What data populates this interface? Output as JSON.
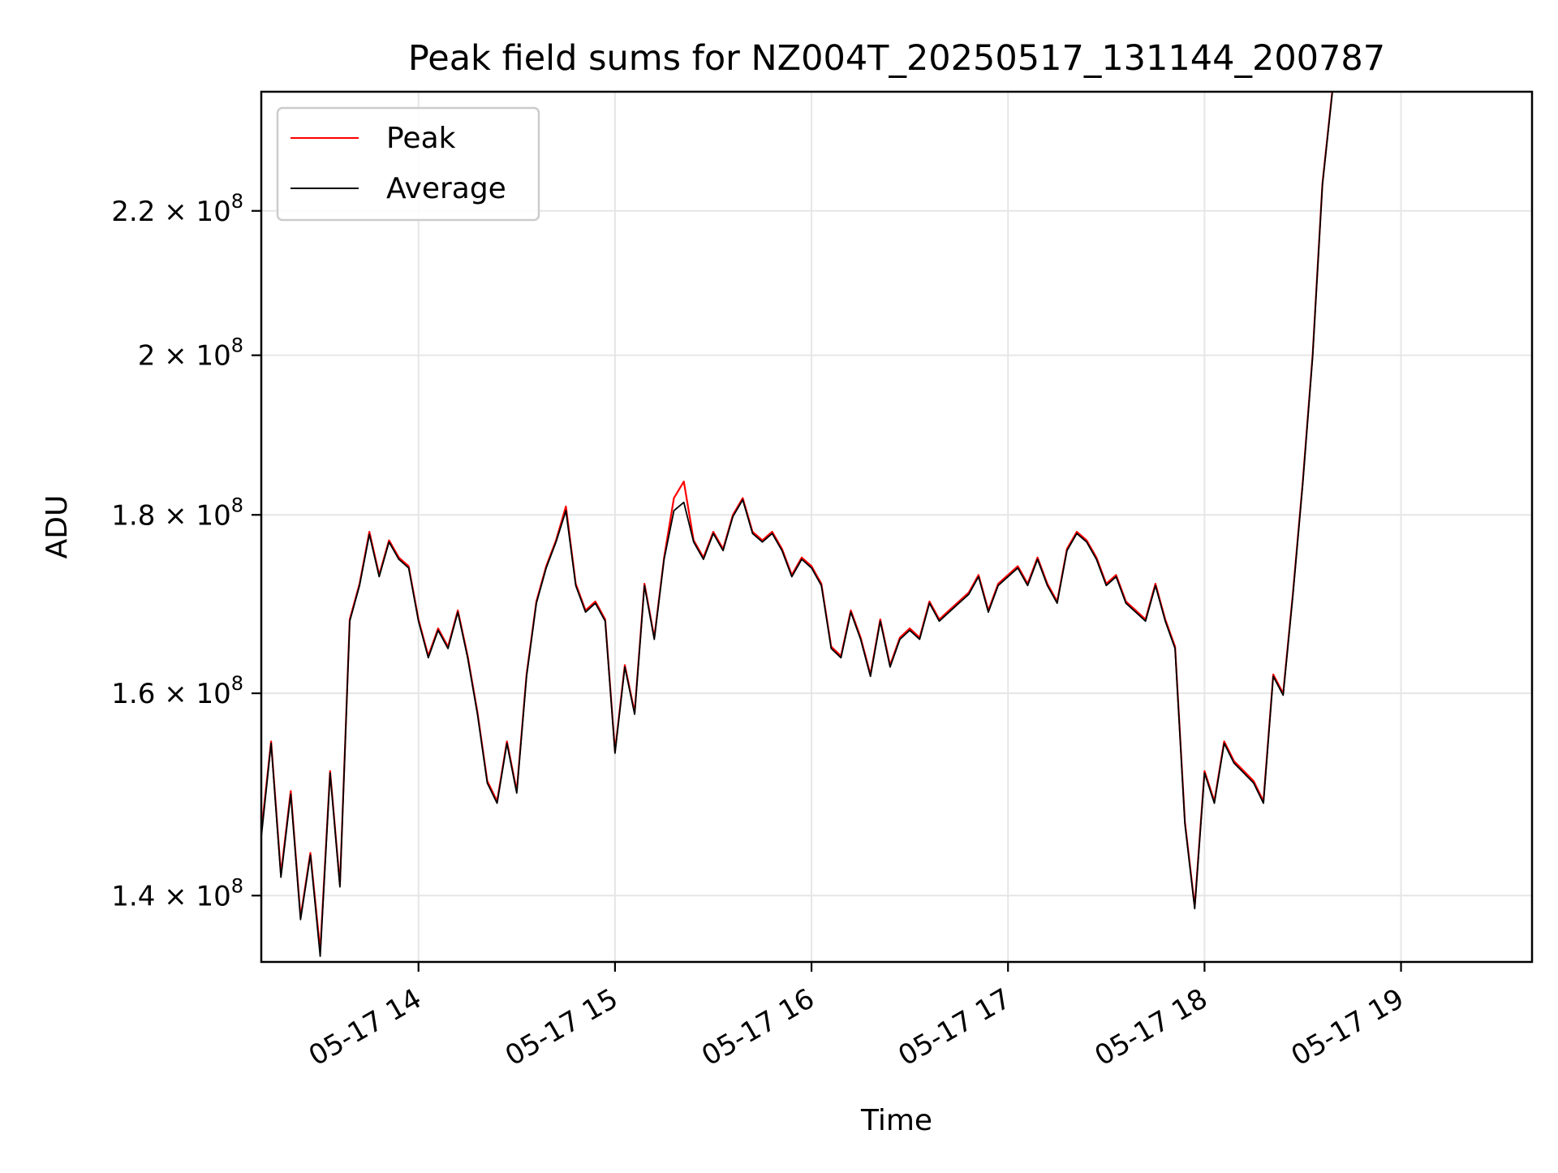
{
  "chart_data": {
    "type": "line",
    "title": "Peak field sums for NZ004T_20250517_131144_200787",
    "xlabel": "Time",
    "ylabel": "ADU",
    "y_scale": "log",
    "grid": true,
    "legend_position": "top-left",
    "xlim": [
      "2025-05-17 13:12",
      "2025-05-17 19:40"
    ],
    "ylim": [
      134000000,
      238000000
    ],
    "x_ticks": [
      {
        "value": "2025-05-17 14:00",
        "label": "05-17 14"
      },
      {
        "value": "2025-05-17 15:00",
        "label": "05-17 15"
      },
      {
        "value": "2025-05-17 16:00",
        "label": "05-17 16"
      },
      {
        "value": "2025-05-17 17:00",
        "label": "05-17 17"
      },
      {
        "value": "2025-05-17 18:00",
        "label": "05-17 18"
      },
      {
        "value": "2025-05-17 19:00",
        "label": "05-17 19"
      }
    ],
    "y_ticks": [
      {
        "value": 140000000,
        "mantissa": "1.4",
        "exponent": "8"
      },
      {
        "value": 160000000,
        "mantissa": "1.6",
        "exponent": "8"
      },
      {
        "value": 180000000,
        "mantissa": "1.8",
        "exponent": "8"
      },
      {
        "value": 200000000,
        "mantissa": "2",
        "exponent": "8"
      },
      {
        "value": 220000000,
        "mantissa": "2.2",
        "exponent": "8"
      }
    ],
    "times_x": "multiply",
    "x": [
      "2025-05-17 13:12",
      "2025-05-17 13:15",
      "2025-05-17 13:18",
      "2025-05-17 13:21",
      "2025-05-17 13:24",
      "2025-05-17 13:27",
      "2025-05-17 13:30",
      "2025-05-17 13:33",
      "2025-05-17 13:36",
      "2025-05-17 13:39",
      "2025-05-17 13:42",
      "2025-05-17 13:45",
      "2025-05-17 13:48",
      "2025-05-17 13:51",
      "2025-05-17 13:54",
      "2025-05-17 13:57",
      "2025-05-17 14:00",
      "2025-05-17 14:03",
      "2025-05-17 14:06",
      "2025-05-17 14:09",
      "2025-05-17 14:12",
      "2025-05-17 14:15",
      "2025-05-17 14:18",
      "2025-05-17 14:21",
      "2025-05-17 14:24",
      "2025-05-17 14:27",
      "2025-05-17 14:30",
      "2025-05-17 14:33",
      "2025-05-17 14:36",
      "2025-05-17 14:39",
      "2025-05-17 14:42",
      "2025-05-17 14:45",
      "2025-05-17 14:48",
      "2025-05-17 14:51",
      "2025-05-17 14:54",
      "2025-05-17 14:57",
      "2025-05-17 15:00",
      "2025-05-17 15:03",
      "2025-05-17 15:06",
      "2025-05-17 15:09",
      "2025-05-17 15:12",
      "2025-05-17 15:15",
      "2025-05-17 15:18",
      "2025-05-17 15:21",
      "2025-05-17 15:24",
      "2025-05-17 15:27",
      "2025-05-17 15:30",
      "2025-05-17 15:33",
      "2025-05-17 15:36",
      "2025-05-17 15:39",
      "2025-05-17 15:42",
      "2025-05-17 15:45",
      "2025-05-17 15:48",
      "2025-05-17 15:51",
      "2025-05-17 15:54",
      "2025-05-17 15:57",
      "2025-05-17 16:00",
      "2025-05-17 16:03",
      "2025-05-17 16:06",
      "2025-05-17 16:09",
      "2025-05-17 16:12",
      "2025-05-17 16:15",
      "2025-05-17 16:18",
      "2025-05-17 16:21",
      "2025-05-17 16:24",
      "2025-05-17 16:27",
      "2025-05-17 16:30",
      "2025-05-17 16:33",
      "2025-05-17 16:36",
      "2025-05-17 16:39",
      "2025-05-17 16:42",
      "2025-05-17 16:45",
      "2025-05-17 16:48",
      "2025-05-17 16:51",
      "2025-05-17 16:54",
      "2025-05-17 16:57",
      "2025-05-17 17:00",
      "2025-05-17 17:03",
      "2025-05-17 17:06",
      "2025-05-17 17:09",
      "2025-05-17 17:12",
      "2025-05-17 17:15",
      "2025-05-17 17:18",
      "2025-05-17 17:21",
      "2025-05-17 17:24",
      "2025-05-17 17:27",
      "2025-05-17 17:30",
      "2025-05-17 17:33",
      "2025-05-17 17:36",
      "2025-05-17 17:39",
      "2025-05-17 17:42",
      "2025-05-17 17:45",
      "2025-05-17 17:48",
      "2025-05-17 17:51",
      "2025-05-17 17:54",
      "2025-05-17 17:57",
      "2025-05-17 18:00",
      "2025-05-17 18:03",
      "2025-05-17 18:06",
      "2025-05-17 18:09",
      "2025-05-17 18:12",
      "2025-05-17 18:15",
      "2025-05-17 18:18",
      "2025-05-17 18:21",
      "2025-05-17 18:24",
      "2025-05-17 18:27",
      "2025-05-17 18:30",
      "2025-05-17 18:33",
      "2025-05-17 18:36",
      "2025-05-17 18:39"
    ],
    "series": [
      {
        "name": "Peak",
        "color": "#ff0000",
        "values": [
          146000000,
          155000000,
          142000000,
          150000000,
          138000000,
          144000000,
          135000000,
          152000000,
          141000000,
          168000000,
          172000000,
          178000000,
          173000000,
          177000000,
          175000000,
          174000000,
          168000000,
          164000000,
          167000000,
          165000000,
          169000000,
          164000000,
          158000000,
          151000000,
          149000000,
          155000000,
          150000000,
          162000000,
          170000000,
          174000000,
          177000000,
          181000000,
          172000000,
          169000000,
          170000000,
          168000000,
          154000000,
          163000000,
          158000000,
          172000000,
          166000000,
          175000000,
          182000000,
          184000000,
          177000000,
          175000000,
          178000000,
          176000000,
          180000000,
          182000000,
          178000000,
          177000000,
          178000000,
          176000000,
          173000000,
          175000000,
          174000000,
          172000000,
          165000000,
          164000000,
          169000000,
          166000000,
          162000000,
          168000000,
          163000000,
          166000000,
          167000000,
          166000000,
          170000000,
          168000000,
          169000000,
          170000000,
          171000000,
          173000000,
          169000000,
          172000000,
          173000000,
          174000000,
          172000000,
          175000000,
          172000000,
          170000000,
          176000000,
          178000000,
          177000000,
          175000000,
          172000000,
          173000000,
          170000000,
          169000000,
          168000000,
          172000000,
          168000000,
          165000000,
          147000000,
          139000000,
          152000000,
          149000000,
          155000000,
          153000000,
          152000000,
          151000000,
          149000000,
          162000000,
          160000000,
          171000000,
          184000000,
          200000000,
          224000000,
          238000000
        ]
      },
      {
        "name": "Average",
        "color": "#000000",
        "values": [
          145500000,
          154800000,
          141700000,
          149700000,
          137800000,
          143800000,
          134500000,
          151800000,
          140800000,
          167800000,
          171800000,
          177700000,
          172800000,
          176800000,
          174800000,
          173800000,
          167800000,
          163800000,
          166800000,
          164800000,
          168800000,
          163800000,
          157800000,
          150800000,
          148800000,
          154800000,
          149800000,
          161800000,
          169800000,
          173800000,
          176800000,
          180500000,
          171800000,
          168800000,
          169800000,
          167800000,
          153800000,
          162800000,
          157800000,
          171800000,
          165800000,
          174800000,
          180500000,
          181500000,
          176800000,
          174800000,
          177800000,
          175800000,
          179800000,
          181800000,
          177800000,
          176800000,
          177800000,
          175800000,
          172800000,
          174800000,
          173800000,
          171800000,
          164800000,
          163800000,
          168800000,
          165800000,
          161800000,
          167800000,
          162800000,
          165800000,
          166800000,
          165800000,
          169800000,
          167800000,
          168800000,
          169800000,
          170800000,
          172800000,
          168800000,
          171800000,
          172800000,
          173800000,
          171800000,
          174800000,
          171800000,
          169800000,
          175800000,
          177800000,
          176800000,
          174800000,
          171800000,
          172800000,
          169800000,
          168800000,
          167800000,
          171800000,
          167800000,
          164800000,
          146800000,
          138800000,
          151800000,
          148800000,
          154800000,
          152800000,
          151800000,
          150800000,
          148800000,
          161800000,
          159800000,
          170800000,
          183800000,
          199800000,
          223800000,
          237800000
        ]
      }
    ]
  }
}
